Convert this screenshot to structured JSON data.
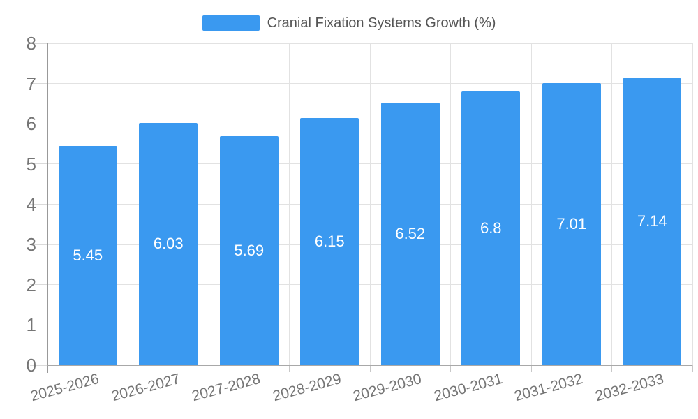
{
  "chart_data": {
    "type": "bar",
    "title": "Cranial Fixation Systems Growth (%)",
    "categories": [
      "2025-2026",
      "2026-2027",
      "2027-2028",
      "2028-2029",
      "2029-2030",
      "2030-2031",
      "2031-2032",
      "2032-2033"
    ],
    "values": [
      5.45,
      6.03,
      5.69,
      6.15,
      6.52,
      6.8,
      7.01,
      7.14
    ],
    "xlabel": "",
    "ylabel": "",
    "ylim": [
      0,
      8
    ],
    "yticks": [
      0,
      1,
      2,
      3,
      4,
      5,
      6,
      7,
      8
    ],
    "grid": true,
    "legend_position": "top",
    "bar_labels_inside": true,
    "x_tick_rotation_deg": -15,
    "colors": {
      "bar": "#3A99F0",
      "bar_label": "#FFFFFF",
      "gridline": "#E2E2E2",
      "y_axis_line": "#999999",
      "baseline": "#A8A8A8",
      "y_tick": "#DADADA",
      "x_tick": "#C8C8C8",
      "tick_label": "#757575",
      "legend_text": "#555555"
    }
  }
}
